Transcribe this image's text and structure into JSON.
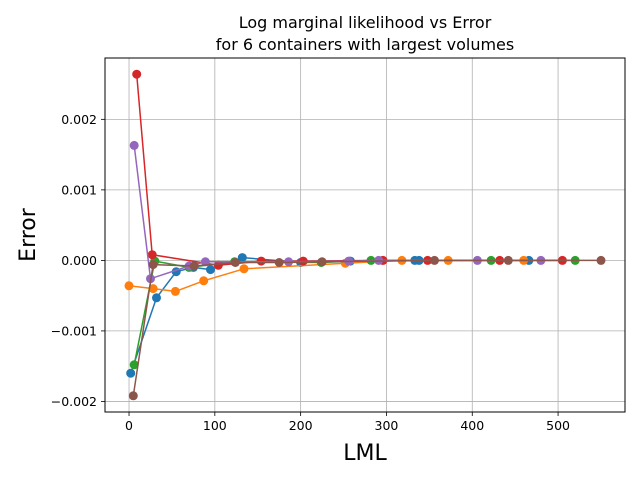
{
  "chart_data": {
    "type": "line",
    "title": [
      "Log marginal likelihood vs Error",
      "for 6 containers with largest volumes"
    ],
    "xlabel": "LML",
    "ylabel": "Error",
    "xlim": [
      -28,
      578
    ],
    "ylim": [
      -0.00215,
      0.00287
    ],
    "xticks": [
      0,
      100,
      200,
      300,
      400,
      500
    ],
    "yticks": [
      -0.002,
      -0.001,
      0.0,
      0.001,
      0.002
    ],
    "xtick_labels": [
      "0",
      "100",
      "200",
      "300",
      "400",
      "500"
    ],
    "ytick_labels": [
      "−0.002",
      "−0.001",
      "0.000",
      "0.001",
      "0.002"
    ],
    "grid": true,
    "legend": "none",
    "series": [
      {
        "color": "#1f77b4",
        "points": [
          [
            2,
            -0.0016
          ],
          [
            32,
            -0.00053
          ],
          [
            55,
            -0.00016
          ],
          [
            75,
            -0.0001
          ],
          [
            95,
            -0.00013
          ],
          [
            132,
            4e-05
          ],
          [
            200,
            -3e-05
          ],
          [
            258,
            -1e-05
          ],
          [
            333,
            0.0
          ],
          [
            338,
            0.0
          ],
          [
            466,
            0.0
          ]
        ]
      },
      {
        "color": "#ff7f0e",
        "points": [
          [
            0,
            -0.00036
          ],
          [
            28,
            -0.0004
          ],
          [
            54,
            -0.00044
          ],
          [
            87,
            -0.00029
          ],
          [
            134,
            -0.00012
          ],
          [
            252,
            -4e-05
          ],
          [
            318,
            0.0
          ],
          [
            372,
            0.0
          ],
          [
            460,
            0.0
          ]
        ]
      },
      {
        "color": "#2ca02c",
        "points": [
          [
            6,
            -0.00148
          ],
          [
            30,
            -1e-05
          ],
          [
            70,
            -0.0001
          ],
          [
            123,
            -2e-05
          ],
          [
            224,
            -3e-05
          ],
          [
            282,
            0.0
          ],
          [
            422,
            0.0
          ],
          [
            520,
            0.0
          ]
        ]
      },
      {
        "color": "#d62728",
        "points": [
          [
            9,
            0.00264
          ],
          [
            27,
            8e-05
          ],
          [
            104,
            -7e-05
          ],
          [
            154,
            -1e-05
          ],
          [
            203,
            -1e-05
          ],
          [
            296,
            0.0
          ],
          [
            348,
            0.0
          ],
          [
            432,
            0.0
          ],
          [
            505,
            0.0
          ]
        ]
      },
      {
        "color": "#9467bd",
        "points": [
          [
            6,
            0.00163
          ],
          [
            25,
            -0.00026
          ],
          [
            70,
            -8e-05
          ],
          [
            89,
            -2e-05
          ],
          [
            186,
            -2e-05
          ],
          [
            256,
            -1e-05
          ],
          [
            291,
            0.0
          ],
          [
            406,
            0.0
          ],
          [
            480,
            0.0
          ]
        ]
      },
      {
        "color": "#8c564b",
        "points": [
          [
            5,
            -0.00192
          ],
          [
            28,
            -6e-05
          ],
          [
            76,
            -8e-05
          ],
          [
            124,
            -3e-05
          ],
          [
            175,
            -3e-05
          ],
          [
            225,
            -2e-05
          ],
          [
            356,
            0.0
          ],
          [
            442,
            0.0
          ],
          [
            550,
            0.0
          ]
        ]
      }
    ]
  }
}
